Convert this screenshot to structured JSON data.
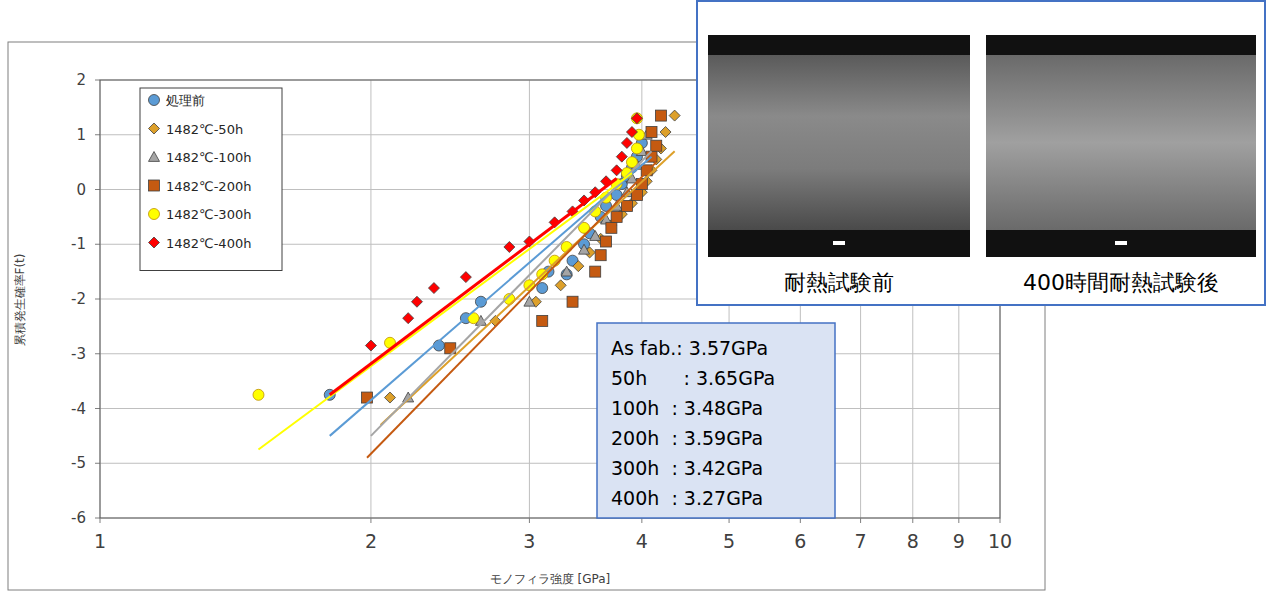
{
  "chart_data": {
    "type": "scatter",
    "x_label": "モノフィラ強度 [GPa]",
    "y_label": "累積発生確率F(t)",
    "log": "x",
    "grid": true,
    "legend": "upper left",
    "xlim": [
      1,
      10
    ],
    "xticks": [
      1,
      2,
      3,
      4,
      5,
      6,
      7,
      8,
      9,
      10
    ],
    "ylim": [
      -6,
      2
    ],
    "yticks": [
      -6,
      -5,
      -4,
      -3,
      -2,
      -1,
      0,
      1,
      2
    ],
    "series": [
      {
        "name": "処理前",
        "color": "#5b9bd5",
        "marker": "circle",
        "x": [
          1.8,
          2.38,
          2.55,
          2.65,
          3.1,
          3.15,
          3.3,
          3.35,
          3.45,
          3.5,
          3.6,
          3.65,
          3.75,
          3.8,
          3.85,
          3.9,
          3.95,
          4.0
        ],
        "values": [
          -3.75,
          -2.85,
          -2.35,
          -2.05,
          -1.8,
          -1.5,
          -1.55,
          -1.3,
          -1.0,
          -0.8,
          -0.5,
          -0.3,
          -0.1,
          0.1,
          0.25,
          0.4,
          0.6,
          0.85
        ],
        "fit": {
          "x": [
            1.8,
            4.1
          ],
          "y": [
            -4.5,
            0.6
          ]
        }
      },
      {
        "name": "1482℃-50h",
        "color": "#dda02a",
        "marker": "diamond",
        "x": [
          2.1,
          2.75,
          3.05,
          3.25,
          3.4,
          3.5,
          3.6,
          3.7,
          3.8,
          3.9,
          4.0,
          4.05,
          4.1,
          4.15,
          4.2,
          4.25,
          4.35
        ],
        "values": [
          -3.8,
          -2.4,
          -2.05,
          -1.75,
          -1.4,
          -1.15,
          -0.9,
          -0.65,
          -0.45,
          -0.25,
          -0.05,
          0.15,
          0.35,
          0.55,
          0.75,
          1.05,
          1.35
        ],
        "fit": {
          "x": [
            2.05,
            4.35
          ],
          "y": [
            -4.3,
            0.7
          ]
        }
      },
      {
        "name": "1482℃-100h",
        "color": "#a5a5a5",
        "marker": "triangle",
        "x": [
          2.2,
          2.65,
          3.0,
          3.3,
          3.45,
          3.55,
          3.65,
          3.75,
          3.85,
          3.9,
          3.95,
          4.0,
          4.05
        ],
        "values": [
          -3.8,
          -2.4,
          -2.05,
          -1.5,
          -1.1,
          -0.85,
          -0.55,
          -0.3,
          -0.05,
          0.2,
          0.45,
          0.7,
          1.0
        ],
        "fit": {
          "x": [
            2.0,
            4.1
          ],
          "y": [
            -4.5,
            0.7
          ]
        }
      },
      {
        "name": "1482℃-200h",
        "color": "#c55a11",
        "marker": "square",
        "x": [
          1.98,
          2.45,
          3.1,
          3.35,
          3.55,
          3.6,
          3.65,
          3.7,
          3.75,
          3.85,
          3.95,
          4.0,
          4.05,
          4.1,
          4.15,
          4.1,
          4.2
        ],
        "values": [
          -3.8,
          -2.9,
          -2.4,
          -2.05,
          -1.5,
          -1.2,
          -0.95,
          -0.7,
          -0.5,
          -0.3,
          -0.1,
          0.1,
          0.35,
          0.6,
          0.8,
          1.05,
          1.35
        ],
        "fit": {
          "x": [
            1.98,
            4.15
          ],
          "y": [
            -4.9,
            0.5
          ]
        }
      },
      {
        "name": "1482℃-300h",
        "color": "#ffff00",
        "marker": "circle",
        "x": [
          1.5,
          2.1,
          2.6,
          2.85,
          3.0,
          3.1,
          3.2,
          3.3,
          3.45,
          3.55,
          3.65,
          3.75,
          3.85,
          3.9,
          3.95,
          3.97,
          3.95
        ],
        "values": [
          -3.75,
          -2.8,
          -2.35,
          -2.0,
          -1.75,
          -1.55,
          -1.3,
          -1.05,
          -0.7,
          -0.4,
          -0.15,
          0.1,
          0.3,
          0.5,
          0.75,
          1.0,
          1.3
        ],
        "fit": {
          "x": [
            1.5,
            3.9
          ],
          "y": [
            -4.75,
            0.3
          ]
        }
      },
      {
        "name": "1482℃-400h",
        "color": "#ff0000",
        "marker": "diamond",
        "x": [
          2.0,
          2.2,
          2.25,
          2.35,
          2.55,
          2.85,
          3.0,
          3.2,
          3.35,
          3.45,
          3.55,
          3.65,
          3.75,
          3.8,
          3.85,
          3.9,
          3.95
        ],
        "values": [
          -2.85,
          -2.35,
          -2.05,
          -1.8,
          -1.6,
          -1.05,
          -0.95,
          -0.6,
          -0.4,
          -0.2,
          -0.05,
          0.15,
          0.35,
          0.6,
          0.85,
          1.05,
          1.3
        ],
        "fit": {
          "x": [
            1.8,
            3.75
          ],
          "y": [
            -3.75,
            0.2
          ]
        }
      }
    ],
    "annotations": [
      "As fab.: 3.57GPa",
      "50h      : 3.65GPa",
      "100h  : 3.48GPa",
      "200h  : 3.59GPa",
      "300h  : 3.42GPa",
      "400h  : 3.27GPa"
    ],
    "image_captions": [
      "耐熱試験前",
      "400時間耐熱試験後"
    ]
  }
}
